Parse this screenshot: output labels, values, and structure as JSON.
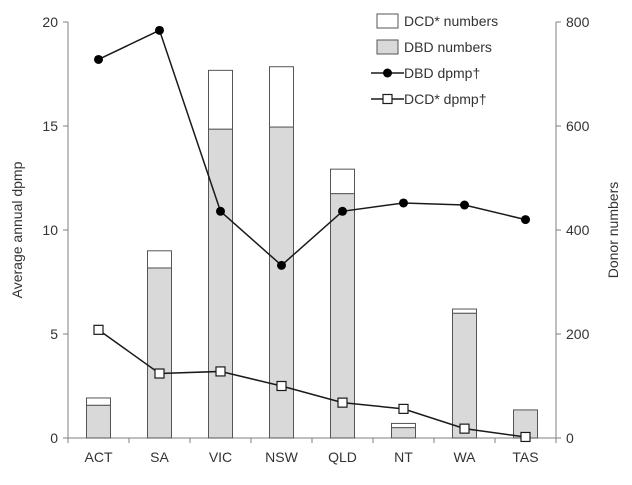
{
  "chart_data": {
    "type": "bar",
    "categories": [
      "ACT",
      "SA",
      "VIC",
      "NSW",
      "QLD",
      "NT",
      "WA",
      "TAS"
    ],
    "left_axis": {
      "label": "Average annual dpmp",
      "range": [
        0,
        20
      ],
      "ticks": [
        0,
        5,
        10,
        15,
        20
      ]
    },
    "right_axis": {
      "label": "Donor numbers",
      "range": [
        0,
        800
      ],
      "ticks": [
        0,
        200,
        400,
        600,
        800
      ]
    },
    "stacked_bars": {
      "axis": "right",
      "series": [
        {
          "name": "DBD numbers",
          "values": [
            63,
            327,
            594,
            598,
            470,
            20,
            240,
            54
          ],
          "color": "#d9d9d9"
        },
        {
          "name": "DCD* numbers",
          "values": [
            14,
            33,
            113,
            116,
            47,
            8,
            8,
            0
          ],
          "color": "#ffffff"
        }
      ]
    },
    "lines": {
      "axis": "left",
      "series": [
        {
          "name": "DBD dpmp†",
          "values": [
            18.2,
            19.6,
            10.9,
            8.3,
            10.9,
            11.3,
            11.2,
            10.5
          ],
          "marker": "filled-circle"
        },
        {
          "name": "DCD* dpmp†",
          "values": [
            5.2,
            3.1,
            3.2,
            2.5,
            1.7,
            1.4,
            0.45,
            0.05
          ],
          "marker": "open-square"
        }
      ]
    },
    "legend": {
      "placement": "top-right",
      "items": [
        {
          "label": "DCD* numbers",
          "icon": "open-bar-swatch"
        },
        {
          "label": "DBD numbers",
          "icon": "grey-bar-swatch"
        },
        {
          "label": "DBD dpmp†",
          "icon": "line-filled-circle"
        },
        {
          "label": "DCD* dpmp†",
          "icon": "line-open-square"
        }
      ]
    },
    "grid": false
  }
}
